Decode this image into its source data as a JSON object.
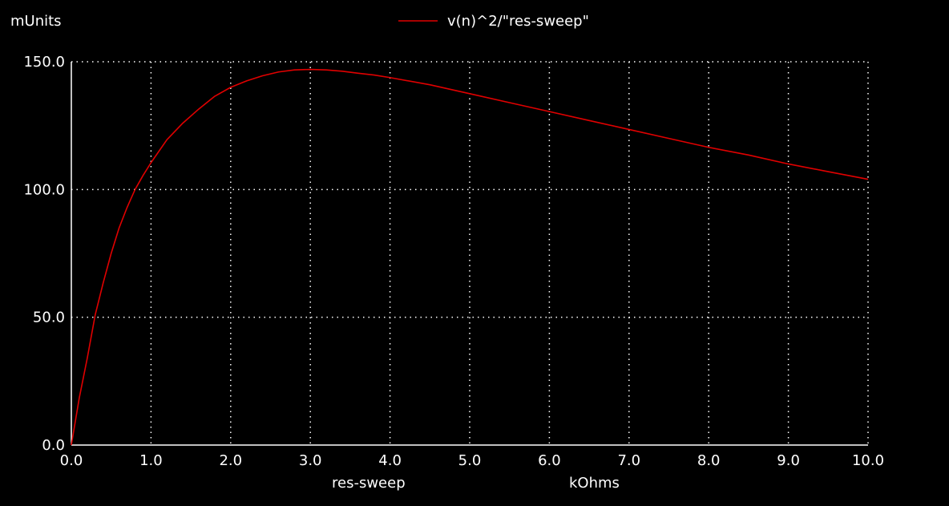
{
  "chart_data": {
    "type": "line",
    "title": "",
    "ylabel": "mUnits",
    "xlabel": "res-sweep",
    "xunit": "kOhms",
    "xlim": [
      0.0,
      10.0
    ],
    "ylim": [
      0.0,
      150.0
    ],
    "xticks": [
      "0.0",
      "1.0",
      "2.0",
      "3.0",
      "4.0",
      "5.0",
      "6.0",
      "7.0",
      "8.0",
      "9.0",
      "10.0"
    ],
    "yticks": [
      "0.0",
      "50.0",
      "100.0",
      "150.0"
    ],
    "grid": true,
    "legend_position": "top-center",
    "background_color": "#000000",
    "axis_color": "#ffffff",
    "series": [
      {
        "name": "v(n)^2/\"res-sweep\"",
        "color": "#e00000",
        "x": [
          0.0,
          0.1,
          0.2,
          0.3,
          0.4,
          0.5,
          0.6,
          0.7,
          0.8,
          0.9,
          1.0,
          1.2,
          1.4,
          1.6,
          1.8,
          2.0,
          2.2,
          2.4,
          2.6,
          2.8,
          3.0,
          3.2,
          3.4,
          3.6,
          3.8,
          4.0,
          4.5,
          5.0,
          5.5,
          6.0,
          6.5,
          7.0,
          7.5,
          8.0,
          8.5,
          9.0,
          9.5,
          10.0
        ],
        "y": [
          0.0,
          18.5,
          34.0,
          51.0,
          63.5,
          75.0,
          85.0,
          93.0,
          100.0,
          105.5,
          110.5,
          119.5,
          126.0,
          131.5,
          136.5,
          140.0,
          142.5,
          144.5,
          146.0,
          146.8,
          147.0,
          146.8,
          146.3,
          145.5,
          144.8,
          143.8,
          141.0,
          137.5,
          134.0,
          130.5,
          127.0,
          123.5,
          120.0,
          116.5,
          113.5,
          110.0,
          107.0,
          104.0
        ]
      }
    ]
  }
}
